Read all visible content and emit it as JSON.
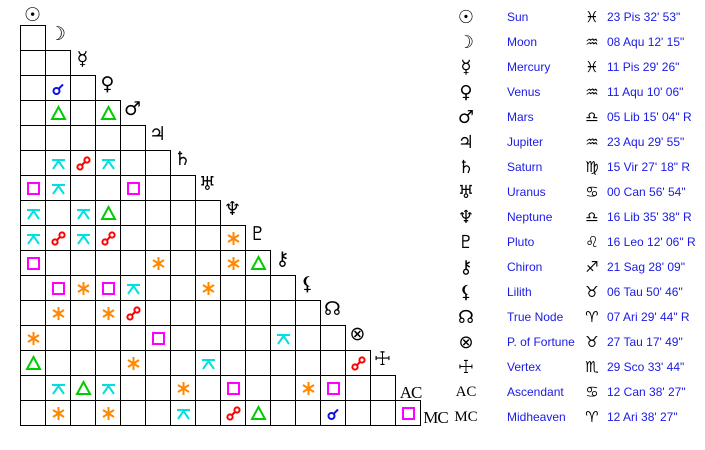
{
  "colors": {
    "conjunction": "#1010e0",
    "opposition": "#ff0000",
    "trine": "#00cc00",
    "square": "#ff00ff",
    "sextile": "#ff8800",
    "quincunx": "#00e0e0",
    "text": "#1a1ae6"
  },
  "planets": [
    {
      "icon": "sun-icon",
      "glyph": "☉",
      "name": "Sun",
      "sign_icon": "pisces-icon",
      "sign_glyph": "♓",
      "position": "23 Pis 32' 53\""
    },
    {
      "icon": "moon-icon",
      "glyph": "☽",
      "name": "Moon",
      "sign_icon": "aquarius-icon",
      "sign_glyph": "♒",
      "position": "08 Aqu 12' 15\""
    },
    {
      "icon": "mercury-icon",
      "glyph": "☿",
      "name": "Mercury",
      "sign_icon": "pisces-icon",
      "sign_glyph": "♓",
      "position": "11 Pis 29' 26\""
    },
    {
      "icon": "venus-icon",
      "glyph": "♀",
      "name": "Venus",
      "sign_icon": "aquarius-icon",
      "sign_glyph": "♒",
      "position": "11 Aqu 10' 06\""
    },
    {
      "icon": "mars-icon",
      "glyph": "♂",
      "name": "Mars",
      "sign_icon": "libra-icon",
      "sign_glyph": "♎",
      "position": "05 Lib 15' 04\" R"
    },
    {
      "icon": "jupiter-icon",
      "glyph": "♃",
      "name": "Jupiter",
      "sign_icon": "aquarius-icon",
      "sign_glyph": "♒",
      "position": "23 Aqu 29' 55\""
    },
    {
      "icon": "saturn-icon",
      "glyph": "♄",
      "name": "Saturn",
      "sign_icon": "virgo-icon",
      "sign_glyph": "♍",
      "position": "15 Vir 27' 18\" R"
    },
    {
      "icon": "uranus-icon",
      "glyph": "♅",
      "name": "Uranus",
      "sign_icon": "cancer-icon",
      "sign_glyph": "♋",
      "position": "00 Can 56' 54\""
    },
    {
      "icon": "neptune-icon",
      "glyph": "♆",
      "name": "Neptune",
      "sign_icon": "libra-icon",
      "sign_glyph": "♎",
      "position": "16 Lib 35' 38\" R"
    },
    {
      "icon": "pluto-icon",
      "glyph": "♇",
      "name": "Pluto",
      "sign_icon": "leo-icon",
      "sign_glyph": "♌",
      "position": "16 Leo 12' 06\" R"
    },
    {
      "icon": "chiron-icon",
      "glyph": "⚷",
      "name": "Chiron",
      "sign_icon": "sagittarius-icon",
      "sign_glyph": "♐",
      "position": "21 Sag 28' 09\""
    },
    {
      "icon": "lilith-icon",
      "glyph": "⚸",
      "name": "Lilith",
      "sign_icon": "taurus-icon",
      "sign_glyph": "♉",
      "position": "06 Tau 50' 46\""
    },
    {
      "icon": "true-node-icon",
      "glyph": "☊",
      "name": "True Node",
      "sign_icon": "aries-icon",
      "sign_glyph": "♈",
      "position": "07 Ari 29' 44\" R"
    },
    {
      "icon": "part-of-fortune-icon",
      "glyph": "⊗",
      "name": "P. of Fortune",
      "sign_icon": "taurus-icon",
      "sign_glyph": "♉",
      "position": "27 Tau 17' 49\""
    },
    {
      "icon": "vertex-icon",
      "glyph": "☩",
      "name": "Vertex",
      "sign_icon": "scorpio-icon",
      "sign_glyph": "♏",
      "position": "29 Sco 33' 44\""
    },
    {
      "icon": "ascendant-icon",
      "glyph": "AC",
      "name": "Ascendant",
      "sign_icon": "cancer-icon",
      "sign_glyph": "♋",
      "position": "12 Can 38' 27\""
    },
    {
      "icon": "midheaven-icon",
      "glyph": "MC",
      "name": "Midheaven",
      "sign_icon": "aries-icon",
      "sign_glyph": "♈",
      "position": "12 Ari 38' 27\""
    }
  ],
  "aspects": [
    [],
    [
      ""
    ],
    [
      "",
      ""
    ],
    [
      "",
      "conjunction",
      ""
    ],
    [
      "",
      "trine",
      "",
      "trine"
    ],
    [
      "",
      "",
      "",
      "",
      ""
    ],
    [
      "",
      "quincunx",
      "opposition",
      "quincunx",
      "",
      ""
    ],
    [
      "square",
      "quincunx",
      "",
      "",
      "square",
      "",
      ""
    ],
    [
      "quincunx",
      "",
      "quincunx",
      "trine",
      "",
      "",
      "",
      ""
    ],
    [
      "quincunx",
      "opposition",
      "quincunx",
      "opposition",
      "",
      "",
      "",
      "",
      "sextile"
    ],
    [
      "square",
      "",
      "",
      "",
      "",
      "sextile",
      "",
      "",
      "sextile",
      "trine"
    ],
    [
      "",
      "square",
      "sextile",
      "square",
      "quincunx",
      "",
      "",
      "sextile",
      "",
      "",
      ""
    ],
    [
      "",
      "sextile",
      "",
      "sextile",
      "opposition",
      "",
      "",
      "",
      "",
      "",
      "",
      ""
    ],
    [
      "sextile",
      "",
      "",
      "",
      "",
      "square",
      "",
      "",
      "",
      "",
      "quincunx",
      "",
      ""
    ],
    [
      "trine",
      "",
      "",
      "",
      "sextile",
      "",
      "",
      "quincunx",
      "",
      "",
      "",
      "",
      "",
      "opposition"
    ],
    [
      "",
      "quincunx",
      "trine",
      "quincunx",
      "",
      "",
      "sextile",
      "",
      "square",
      "",
      "",
      "sextile",
      "square",
      "",
      ""
    ],
    [
      "",
      "sextile",
      "",
      "sextile",
      "",
      "",
      "quincunx",
      "",
      "opposition",
      "trine",
      "",
      "",
      "conjunction",
      "",
      "",
      "square"
    ]
  ]
}
